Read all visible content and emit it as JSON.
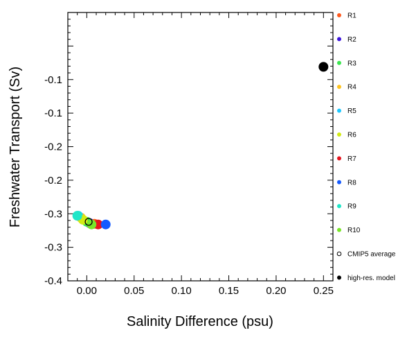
{
  "chart_data": {
    "type": "scatter",
    "xlabel": "Salinity Difference (psu)",
    "ylabel": "Freshwater Transport (Sv)",
    "xlim": [
      -0.02,
      0.26
    ],
    "ylim": [
      -0.4,
      0.0
    ],
    "x_ticks": [
      {
        "value": 0.0,
        "label": "0.00"
      },
      {
        "value": 0.05,
        "label": "0.05"
      },
      {
        "value": 0.1,
        "label": "0.10"
      },
      {
        "value": 0.15,
        "label": "0.15"
      },
      {
        "value": 0.2,
        "label": "0.20"
      },
      {
        "value": 0.25,
        "label": "0.25"
      }
    ],
    "y_ticks": [
      {
        "value": -0.4,
        "label": "-0.4"
      },
      {
        "value": -0.35,
        "label": "-0.3"
      },
      {
        "value": -0.3,
        "label": "-0.3"
      },
      {
        "value": -0.25,
        "label": "-0.2"
      },
      {
        "value": -0.2,
        "label": "-0.2"
      },
      {
        "value": -0.15,
        "label": "-0.1"
      },
      {
        "value": -0.1,
        "label": "-0.1"
      }
    ],
    "grid": false,
    "legend_position": "right",
    "series": [
      {
        "name": "R1",
        "color": "#ff5a1e",
        "x": 0.008,
        "y": -0.315
      },
      {
        "name": "R2",
        "color": "#3c14dc",
        "x": 0.003,
        "y": -0.314
      },
      {
        "name": "R3",
        "color": "#3ce650",
        "x": 0.0,
        "y": -0.312
      },
      {
        "name": "R4",
        "color": "#ffc31e",
        "x": -0.006,
        "y": -0.306
      },
      {
        "name": "R5",
        "color": "#1ec8ff",
        "x": -0.009,
        "y": -0.303
      },
      {
        "name": "R6",
        "color": "#d2eb14",
        "x": -0.004,
        "y": -0.309
      },
      {
        "name": "R7",
        "color": "#e6141e",
        "x": 0.012,
        "y": -0.316
      },
      {
        "name": "R8",
        "color": "#145aff",
        "x": 0.02,
        "y": -0.316
      },
      {
        "name": "R9",
        "color": "#1ee6c8",
        "x": -0.01,
        "y": -0.303
      },
      {
        "name": "R10",
        "color": "#78e628",
        "x": 0.005,
        "y": -0.316
      },
      {
        "name": "CMIP5 average",
        "color": "#000000",
        "hollow": true,
        "x": 0.002,
        "y": -0.312
      },
      {
        "name": "high-res. model",
        "color": "#000000",
        "x": 0.25,
        "y": -0.081
      }
    ]
  }
}
